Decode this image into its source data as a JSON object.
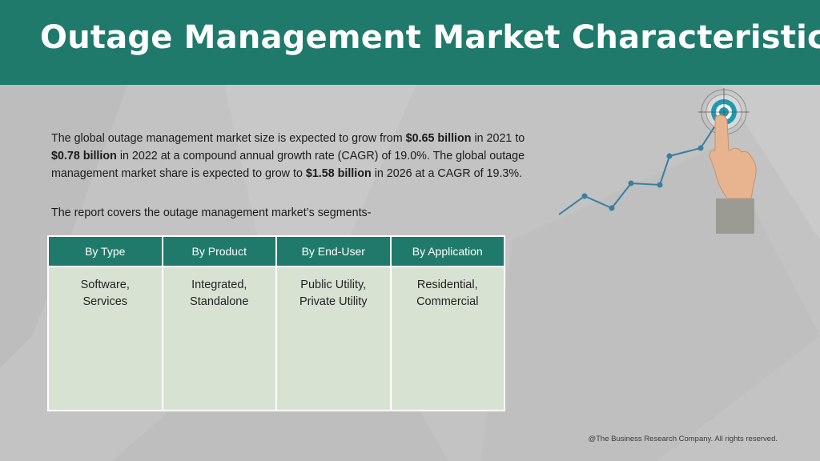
{
  "header": {
    "title": "Outage Management Market Characteristics:"
  },
  "intro": {
    "p1_a": "The global outage management market size is expected to grow from ",
    "p1_b": "$0.65 billion",
    "p1_c": " in 2021 to ",
    "p1_d": "$0.78 billion",
    "p1_e": " in 2022 at a compound annual growth rate (CAGR) of 19.0%. The global outage management market share is expected to grow to ",
    "p1_f": "$1.58 billion",
    "p1_g": " in 2026 at a CAGR of 19.3%.",
    "covers": "The report covers the outage management market’s segments-"
  },
  "segments": {
    "headers": [
      "By Type",
      "By Product",
      "By End-User",
      "By Application"
    ],
    "values": [
      "Software,\nServices",
      "Integrated,\nStandalone",
      "Public Utility,\nPrivate Utility",
      "Residential,\nCommercial"
    ]
  },
  "decoration": {
    "accent_color": "#1f7a6c",
    "line_color": "#3a7fa0",
    "icons": [
      "target-icon",
      "pointing-hand-icon",
      "growth-line-icon"
    ]
  },
  "footer": {
    "copyright": "@The Business Research Company. All rights reserved."
  }
}
